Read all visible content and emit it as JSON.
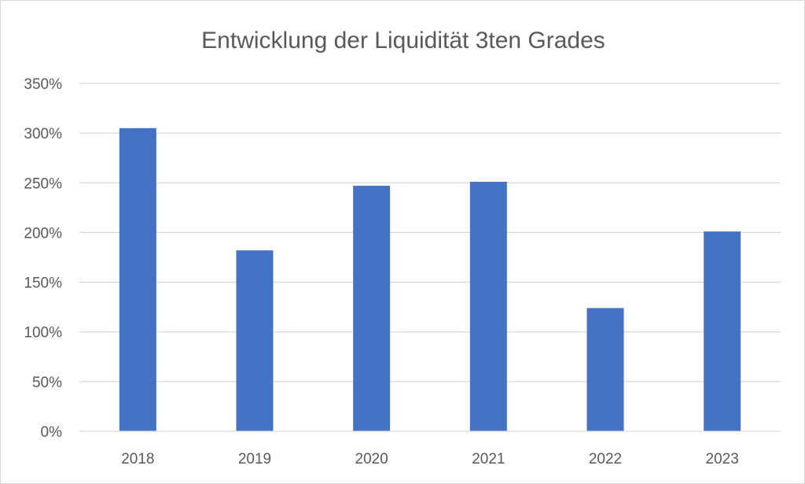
{
  "chart_data": {
    "type": "bar",
    "title": "Entwicklung der Liquidität 3ten Grades",
    "xlabel": "",
    "ylabel": "",
    "categories": [
      "2018",
      "2019",
      "2020",
      "2021",
      "2022",
      "2023"
    ],
    "values": [
      305,
      182,
      247,
      251,
      124,
      201
    ],
    "value_unit": "%",
    "ylim": [
      0,
      350
    ],
    "y_ticks": [
      0,
      50,
      100,
      150,
      200,
      250,
      300,
      350
    ],
    "y_tick_labels": [
      "0%",
      "50%",
      "100%",
      "150%",
      "200%",
      "250%",
      "300%",
      "350%"
    ],
    "grid": true,
    "legend": "none",
    "colors": {
      "bar": "#4472C4",
      "text": "#595959",
      "grid": "#d9d9d9"
    }
  }
}
